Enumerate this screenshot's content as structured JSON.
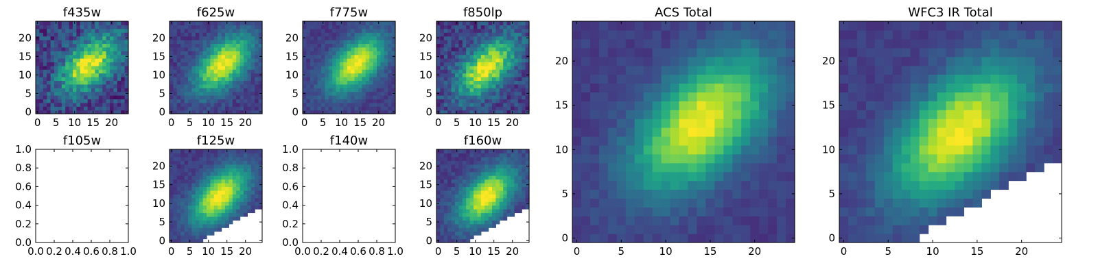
{
  "chart_data": [
    {
      "type": "heatmap",
      "title": "f435w",
      "colormap": "viridis",
      "grid": false,
      "xlim": [
        -0.5,
        24.5
      ],
      "ylim": [
        -0.5,
        24.5
      ],
      "xticks": [
        "0",
        "5",
        "10",
        "15",
        "20"
      ],
      "yticks": [
        "0",
        "5",
        "10",
        "15",
        "20"
      ],
      "peak": {
        "x": 14,
        "y": 13
      },
      "empty_region": null
    },
    {
      "type": "heatmap",
      "title": "f625w",
      "colormap": "viridis",
      "grid": false,
      "xlim": [
        -0.5,
        24.5
      ],
      "ylim": [
        -0.5,
        24.5
      ],
      "xticks": [
        "0",
        "5",
        "10",
        "15",
        "20"
      ],
      "yticks": [
        "0",
        "5",
        "10",
        "15",
        "20"
      ],
      "peak": {
        "x": 14,
        "y": 13
      },
      "empty_region": null
    },
    {
      "type": "heatmap",
      "title": "f775w",
      "colormap": "viridis",
      "grid": false,
      "xlim": [
        -0.5,
        24.5
      ],
      "ylim": [
        -0.5,
        24.5
      ],
      "xticks": [
        "0",
        "5",
        "10",
        "15",
        "20"
      ],
      "yticks": [
        "0",
        "5",
        "10",
        "15",
        "20"
      ],
      "peak": {
        "x": 14,
        "y": 13
      },
      "empty_region": null
    },
    {
      "type": "heatmap",
      "title": "f850lp",
      "colormap": "viridis",
      "grid": false,
      "xlim": [
        -0.5,
        24.5
      ],
      "ylim": [
        -0.5,
        24.5
      ],
      "xticks": [
        "0",
        "5",
        "10",
        "15",
        "20"
      ],
      "yticks": [
        "0",
        "5",
        "10",
        "15",
        "20"
      ],
      "peak": {
        "x": 13,
        "y": 12
      },
      "empty_region": null
    },
    {
      "type": "heatmap",
      "title": "f105w",
      "empty": true,
      "xlim": [
        0,
        1
      ],
      "ylim": [
        0,
        1
      ],
      "xticks": [
        "0.0",
        "0.2",
        "0.4",
        "0.6",
        "0.8",
        "1.0"
      ],
      "yticks": [
        "0.0",
        "0.2",
        "0.4",
        "0.6",
        "0.8",
        "1.0"
      ]
    },
    {
      "type": "heatmap",
      "title": "f125w",
      "colormap": "viridis",
      "grid": false,
      "xlim": [
        -0.5,
        24.5
      ],
      "ylim": [
        -0.5,
        24.5
      ],
      "xticks": [
        "0",
        "5",
        "10",
        "15",
        "20"
      ],
      "yticks": [
        "0",
        "5",
        "10",
        "15",
        "20"
      ],
      "peak": {
        "x": 13,
        "y": 12
      },
      "empty_region": {
        "x0": 8,
        "x1": 24,
        "y_at_x0": 0,
        "y_at_x1": 9
      }
    },
    {
      "type": "heatmap",
      "title": "f140w",
      "empty": true,
      "xlim": [
        0,
        1
      ],
      "ylim": [
        0,
        1
      ],
      "xticks": [
        "0.0",
        "0.2",
        "0.4",
        "0.6",
        "0.8",
        "1.0"
      ],
      "yticks": [
        "0.0",
        "0.2",
        "0.4",
        "0.6",
        "0.8",
        "1.0"
      ]
    },
    {
      "type": "heatmap",
      "title": "f160w",
      "colormap": "viridis",
      "grid": false,
      "xlim": [
        -0.5,
        24.5
      ],
      "ylim": [
        -0.5,
        24.5
      ],
      "xticks": [
        "0",
        "5",
        "10",
        "15",
        "20"
      ],
      "yticks": [
        "0",
        "5",
        "10",
        "15",
        "20"
      ],
      "peak": {
        "x": 13,
        "y": 12
      },
      "empty_region": {
        "x0": 8,
        "x1": 24,
        "y_at_x0": 0,
        "y_at_x1": 9
      }
    },
    {
      "type": "heatmap",
      "title": "ACS Total",
      "colormap": "viridis",
      "grid": false,
      "xlim": [
        -0.5,
        24.5
      ],
      "ylim": [
        -0.5,
        24.5
      ],
      "xticks": [
        "0",
        "5",
        "10",
        "15",
        "20"
      ],
      "yticks": [
        "0",
        "5",
        "10",
        "15",
        "20"
      ],
      "peak": {
        "x": 14,
        "y": 13
      },
      "empty_region": null
    },
    {
      "type": "heatmap",
      "title": "WFC3 IR Total",
      "colormap": "viridis",
      "grid": false,
      "xlim": [
        -0.5,
        24.5
      ],
      "ylim": [
        -0.5,
        24.5
      ],
      "xticks": [
        "0",
        "5",
        "10",
        "15",
        "20"
      ],
      "yticks": [
        "0",
        "5",
        "10",
        "15",
        "20"
      ],
      "peak": {
        "x": 13,
        "y": 12
      },
      "empty_region": {
        "x0": 8,
        "x1": 24,
        "y_at_x0": 0,
        "y_at_x1": 9
      }
    }
  ]
}
